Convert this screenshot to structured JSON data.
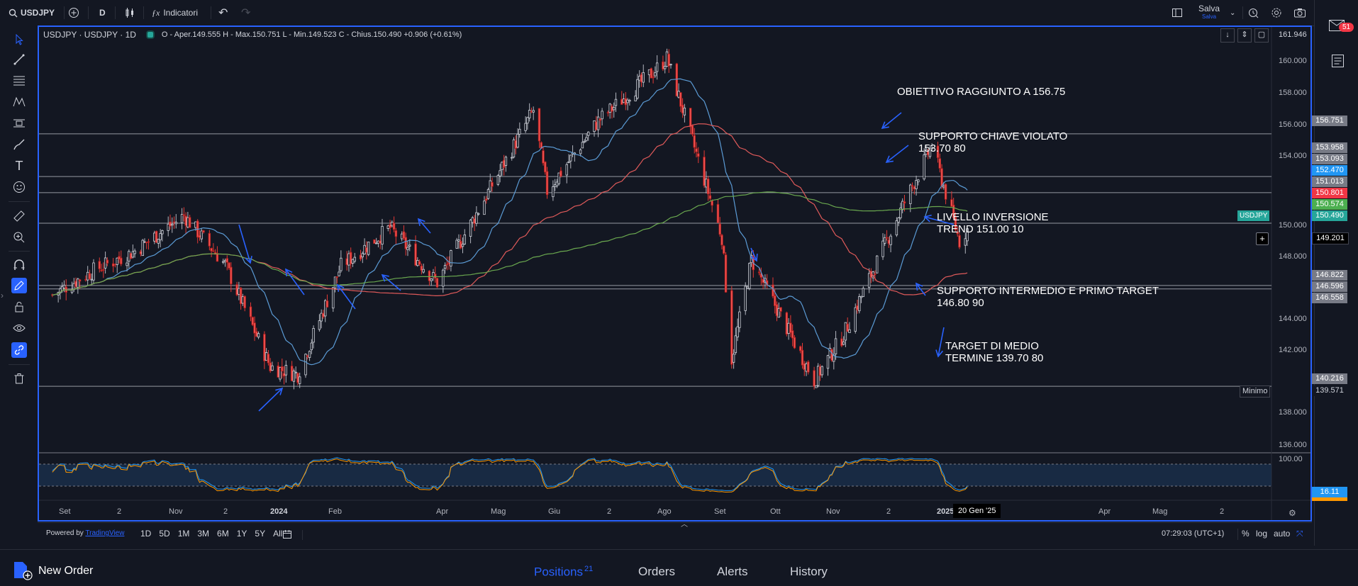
{
  "topbar": {
    "symbol": "USDJPY",
    "interval": "D",
    "indicators_label": "Indicatori",
    "save_label": "Salva",
    "save_sub": "Salva"
  },
  "notifications": {
    "count": "51"
  },
  "legend": {
    "title": "USDJPY · USDJPY · 1D",
    "ohlc": "O - Aper.149.555  H - Max.150.751  L - Min.149.523  C - Chius.150.490  +0.906 (+0.61%)"
  },
  "annotations": [
    "OBIETTIVO RAGGIUNTO A 156.75",
    "SUPPORTO CHIAVE VIOLATO",
    "153.70 80",
    "LIVELLO INVERSIONE",
    "TREND 151.00 10",
    "SUPPORTO INTERMEDIO E PRIMO TARGET",
    "146.80 90",
    "TARGET DI MEDIO",
    "TERMINE  139.70 80"
  ],
  "price_axis": [
    "161.946",
    "160.000",
    "158.000",
    "156.000",
    "154.000",
    "150.000",
    "148.000",
    "144.000",
    "142.000",
    "138.000",
    "136.000"
  ],
  "price_tags": [
    {
      "label": "156.751",
      "color": "#787b86"
    },
    {
      "label": "153.958",
      "color": "#787b86"
    },
    {
      "label": "153.093",
      "color": "#787b86"
    },
    {
      "label": "152.470",
      "color": "#2196f3"
    },
    {
      "label": "151.013",
      "color": "#787b86"
    },
    {
      "label": "150.801",
      "color": "#f23645"
    },
    {
      "label": "150.574",
      "color": "#4caf50"
    },
    {
      "label": "150.490",
      "color": "#26a69a"
    },
    {
      "label": "149.201",
      "color": "#000000"
    },
    {
      "label": "146.822",
      "color": "#787b86"
    },
    {
      "label": "146.596",
      "color": "#787b86"
    },
    {
      "label": "146.558",
      "color": "#787b86"
    },
    {
      "label": "140.216",
      "color": "#787b86"
    },
    {
      "label": "139.571",
      "color": "#131722"
    }
  ],
  "symbol_tag": "USDJPY",
  "min_label": "Minimo",
  "osc_axis": [
    "100.00"
  ],
  "osc_value": "16.11",
  "time_axis": [
    "Set",
    "2",
    "Nov",
    "2",
    "2024",
    "Feb",
    "Apr",
    "Mag",
    "Giu",
    "2",
    "Ago",
    "Set",
    "Ott",
    "Nov",
    "2",
    "2025",
    "Apr",
    "Mag",
    "2"
  ],
  "cursor_date": "20 Gen '25",
  "bottombar": {
    "powered": "Powered by",
    "brand": "TradingView",
    "ranges": [
      "1D",
      "5D",
      "1M",
      "3M",
      "6M",
      "1Y",
      "5Y",
      "All"
    ],
    "clock": "07:29:03 (UTC+1)",
    "pct": "%",
    "log": "log",
    "auto": "auto"
  },
  "footer": {
    "new_order": "New Order",
    "tabs": [
      "Positions",
      "Orders",
      "Alerts",
      "History"
    ],
    "positions_count": "21"
  },
  "colors": {
    "accent": "#2962ff",
    "up": "#26a69a",
    "down": "#ef5350",
    "ma_blue": "#5b9bd5",
    "ma_red": "#e05a5a",
    "ma_green": "#6aa84f"
  },
  "chart_data": {
    "type": "candlestick",
    "symbol": "USDJPY",
    "interval": "1D",
    "ylim": [
      135.5,
      162.5
    ],
    "close_path": [
      [
        "2023-08-25",
        146.2
      ],
      [
        "2023-09-15",
        147.8
      ],
      [
        "2023-10-05",
        149.0
      ],
      [
        "2023-10-31",
        151.4
      ],
      [
        "2023-11-21",
        148.2
      ],
      [
        "2023-12-14",
        141.5
      ],
      [
        "2023-12-28",
        141.0
      ],
      [
        "2024-01-19",
        148.1
      ],
      [
        "2024-02-13",
        150.6
      ],
      [
        "2024-03-08",
        147.0
      ],
      [
        "2024-03-27",
        151.3
      ],
      [
        "2024-04-26",
        158.3
      ],
      [
        "2024-05-03",
        153.0
      ],
      [
        "2024-05-29",
        157.6
      ],
      [
        "2024-06-26",
        160.8
      ],
      [
        "2024-07-03",
        161.7
      ],
      [
        "2024-07-31",
        150.0
      ],
      [
        "2024-08-05",
        142.0
      ],
      [
        "2024-08-15",
        148.5
      ],
      [
        "2024-09-16",
        140.6
      ],
      [
        "2024-10-01",
        143.6
      ],
      [
        "2024-10-31",
        152.0
      ],
      [
        "2024-11-15",
        156.0
      ],
      [
        "2024-11-29",
        149.7
      ],
      [
        "2024-12-03",
        150.5
      ]
    ],
    "horizontal_lines": [
      156.751,
      153.958,
      152.9,
      150.9,
      146.822,
      146.596,
      140.216
    ],
    "last_close": 150.49,
    "oscillator": {
      "name": "Stochastic",
      "last": 16.11,
      "range": [
        0,
        100
      ]
    }
  }
}
